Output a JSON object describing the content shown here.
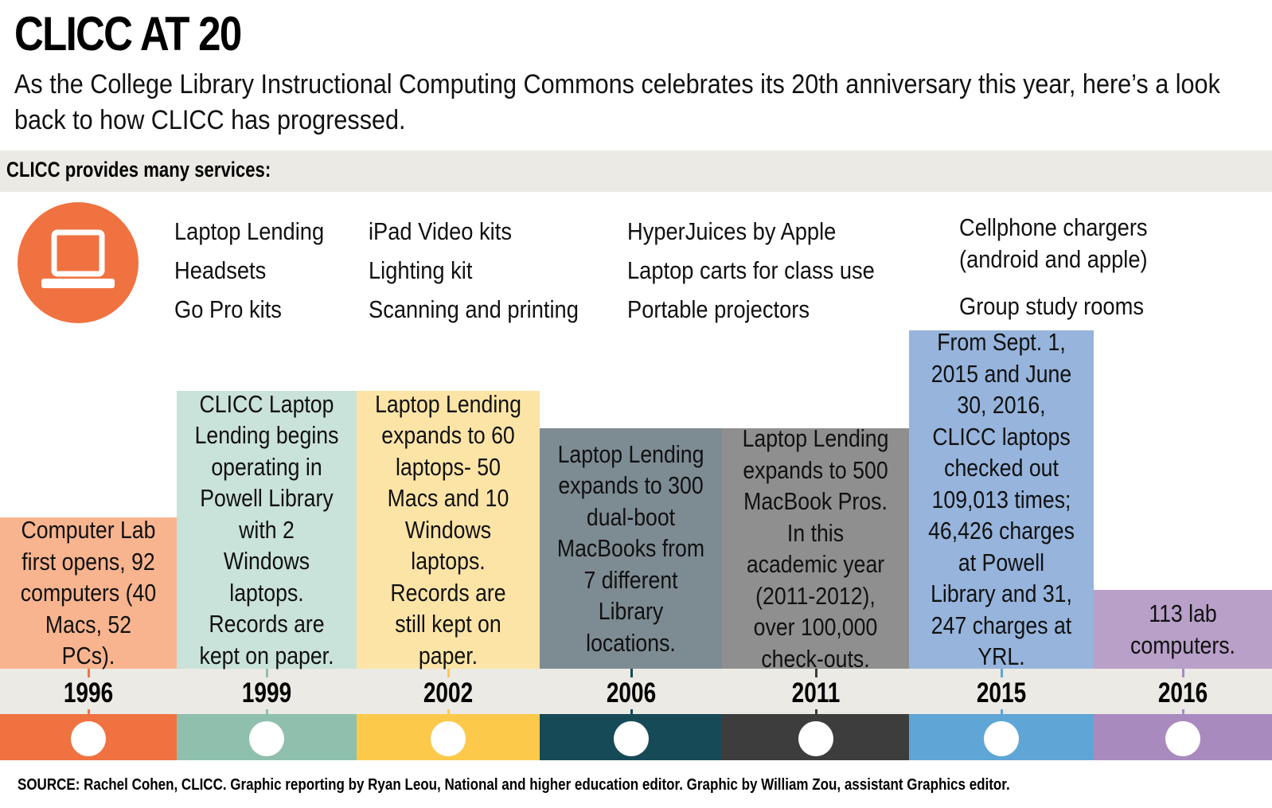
{
  "header": {
    "title": "CLICC AT 20",
    "subtitle": "As the College Library Instructional Computing Commons celebrates its 20th anniversary this year, here’s a look back to how CLICC has progressed."
  },
  "services": {
    "heading": "CLICC provides many services:",
    "columns": [
      [
        "Laptop Lending",
        "Headsets",
        "Go Pro kits"
      ],
      [
        "iPad Video kits",
        "Lighting kit",
        "Scanning and printing"
      ],
      [
        "HyperJuices by Apple",
        "Laptop carts for class use",
        "Portable projectors"
      ],
      [
        "Cellphone chargers (android and apple)",
        "Group study rooms"
      ]
    ]
  },
  "timeline": {
    "events": [
      {
        "year": "1996",
        "text": "Computer Lab first opens, 92 computers (40 Macs, 52 PCs)."
      },
      {
        "year": "1999",
        "text": "CLICC Laptop Lending begins operating in Powell Library with 2 Windows laptops. Records are kept on paper."
      },
      {
        "year": "2002",
        "text": "Laptop Lending expands to 60 laptops- 50 Macs and 10 Windows laptops. Records are still kept on paper."
      },
      {
        "year": "2006",
        "text": "Laptop Lending expands to 300 dual-boot MacBooks from 7 different Library locations."
      },
      {
        "year": "2011",
        "text": "Laptop Lending expands to 500 MacBook Pros. In this academic year (2011-2012), over 100,000 check-outs."
      },
      {
        "year": "2015",
        "text": "From Sept. 1, 2015 and June 30, 2016, CLICC laptops checked out 109,013 times; 46,426 charges at Powell Library and 31, 247 charges at YRL."
      },
      {
        "year": "2016",
        "text": "113 lab computers."
      }
    ]
  },
  "footer": {
    "source": "SOURCE: Rachel Cohen, CLICC. Graphic reporting by Ryan Leou, National and higher education editor. Graphic by William Zou, assistant Graphics editor."
  }
}
